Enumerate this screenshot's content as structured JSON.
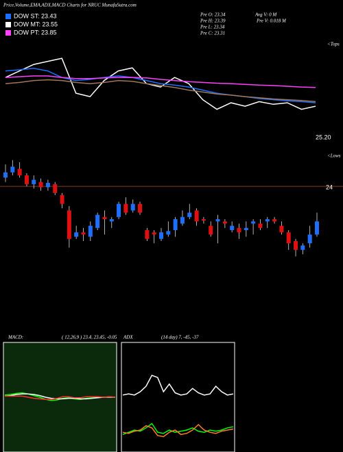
{
  "header": {
    "title": "Price,Volume,EMA,ADX,MACD Charts for NRUC MunafaSutra.com",
    "legend": [
      {
        "label": "DOW ST: 23.43",
        "color": "#1e6fff"
      },
      {
        "label": "DOW MT: 23.55",
        "color": "#ffffff"
      },
      {
        "label": "DOW PT: 23.85",
        "color": "#ff40ff"
      }
    ],
    "prev": [
      "Pre  O: 23.34",
      "Pre  H: 23.39",
      "Pre  L: 23.34",
      "Pre  C: 23.31"
    ],
    "volume": [
      "Avg V: 0  M",
      "Pre  V: 0.018 M"
    ]
  },
  "ema_panel": {
    "marker": "<Tops",
    "last_label": "25.20",
    "ylim": [
      24.3,
      26.8
    ],
    "series": [
      {
        "color": "#ffffff",
        "values": [
          26.03,
          26.2,
          26.37,
          26.45,
          26.53,
          25.62,
          25.53,
          25.95,
          26.2,
          26.28,
          25.87,
          25.78,
          26.03,
          25.87,
          25.45,
          25.2,
          25.37,
          25.28,
          25.4,
          25.33,
          25.37,
          25.2,
          25.28
        ]
      },
      {
        "color": "#1e6fff",
        "values": [
          26.2,
          26.23,
          26.27,
          26.2,
          26.03,
          25.95,
          25.98,
          26.03,
          26.07,
          26.03,
          25.95,
          25.87,
          25.83,
          25.78,
          25.7,
          25.62,
          25.57,
          25.53,
          25.48,
          25.45,
          25.42,
          25.4,
          25.37
        ]
      },
      {
        "color": "#ff40ff",
        "values": [
          26.03,
          26.05,
          26.07,
          26.07,
          26.03,
          26.0,
          26.0,
          26.02,
          26.03,
          26.03,
          26.02,
          25.98,
          25.95,
          25.92,
          25.9,
          25.88,
          25.87,
          25.85,
          25.83,
          25.82,
          25.8,
          25.78,
          25.77
        ]
      },
      {
        "color": "#a0785a",
        "values": [
          25.87,
          25.9,
          25.95,
          25.97,
          25.95,
          25.9,
          25.87,
          25.9,
          25.95,
          25.93,
          25.87,
          25.82,
          25.77,
          25.7,
          25.65,
          25.6,
          25.57,
          25.53,
          25.5,
          25.47,
          25.45,
          25.43,
          25.4
        ]
      }
    ]
  },
  "price_panel": {
    "marker": "<Lows",
    "level": 24,
    "ylim": [
      22,
      24.8
    ],
    "open": [
      24.2,
      24.32,
      24.4,
      24.25,
      24.05,
      24.1,
      23.98,
      24.05,
      23.8,
      23.45,
      22.85,
      22.95,
      22.85,
      23.05,
      23.3,
      23.2,
      23.3,
      23.6,
      23.45,
      23.6,
      23.0,
      22.95,
      22.8,
      22.9,
      23.0,
      23.15,
      23.3,
      23.45,
      23.25,
      23.1,
      23.2,
      23.2,
      23.0,
      23.05,
      23.0,
      23.15,
      23.15,
      23.2,
      23.25,
      23.1,
      22.95,
      22.75,
      22.55,
      22.7,
      22.9
    ],
    "high": [
      24.5,
      24.6,
      24.55,
      24.3,
      24.25,
      24.18,
      24.15,
      24.1,
      23.85,
      23.55,
      23.1,
      23.05,
      23.2,
      23.4,
      23.45,
      23.3,
      23.65,
      23.75,
      23.7,
      23.65,
      23.05,
      23.0,
      23.05,
      23.2,
      23.3,
      23.45,
      23.6,
      23.5,
      23.3,
      23.2,
      23.35,
      23.25,
      23.2,
      23.15,
      23.2,
      23.25,
      23.25,
      23.3,
      23.3,
      23.2,
      23.0,
      22.8,
      22.7,
      23.1,
      23.4
    ],
    "low": [
      24.1,
      24.25,
      24.2,
      24.0,
      23.95,
      23.9,
      23.9,
      23.8,
      23.5,
      22.6,
      22.8,
      22.75,
      22.75,
      23.0,
      22.9,
      23.05,
      23.25,
      23.35,
      23.4,
      23.35,
      22.75,
      22.7,
      22.75,
      22.85,
      22.85,
      23.1,
      23.25,
      23.1,
      23.15,
      22.85,
      22.7,
      23.05,
      22.95,
      22.8,
      22.85,
      22.9,
      23.0,
      23.05,
      23.15,
      22.9,
      22.55,
      22.4,
      22.45,
      22.6,
      22.85
    ],
    "close": [
      24.32,
      24.45,
      24.25,
      24.05,
      24.15,
      23.98,
      24.08,
      23.85,
      23.6,
      22.8,
      22.95,
      22.9,
      23.1,
      23.35,
      23.25,
      23.25,
      23.6,
      23.4,
      23.6,
      23.4,
      22.8,
      22.9,
      22.95,
      22.98,
      23.25,
      23.3,
      23.4,
      23.2,
      23.22,
      22.9,
      23.25,
      23.15,
      23.1,
      22.95,
      23.05,
      23.2,
      23.05,
      23.25,
      23.2,
      22.95,
      22.7,
      22.55,
      22.65,
      22.9,
      23.2
    ]
  },
  "macd_panel": {
    "label": "MACD:",
    "params": "( 12,26,9 ) 23.4, 23.45, -0.05",
    "ylim": [
      -1,
      1
    ],
    "series": [
      {
        "color": "#00ff00",
        "values": [
          0.04,
          0.05,
          0.07,
          0.08,
          0.06,
          0.03,
          0.0,
          -0.04,
          -0.06,
          -0.05,
          -0.02,
          -0.01,
          -0.03,
          -0.04,
          -0.02,
          -0.01,
          0.0,
          0.0,
          0.01,
          0.0
        ]
      },
      {
        "color": "#ffffff",
        "values": [
          0.02,
          0.03,
          0.05,
          0.06,
          0.06,
          0.05,
          0.03,
          0.0,
          -0.02,
          -0.03,
          -0.03,
          -0.02,
          -0.02,
          -0.03,
          -0.03,
          -0.02,
          -0.01,
          0.0,
          0.0,
          0.0
        ]
      },
      {
        "color": "#ff3030",
        "values": [
          0.02,
          0.02,
          0.02,
          0.02,
          0.0,
          -0.02,
          -0.03,
          -0.04,
          -0.04,
          -0.02,
          0.01,
          0.01,
          -0.01,
          -0.01,
          0.01,
          0.01,
          0.01,
          0.0,
          0.01,
          0.0
        ]
      }
    ]
  },
  "adx_panel": {
    "label": "ADX",
    "params": "(14 day) 7, -45, -37",
    "ylim": [
      0,
      100
    ],
    "series": [
      {
        "color": "#ffffff",
        "values": [
          52,
          53,
          52,
          55,
          60,
          70,
          68,
          55,
          62,
          54,
          52,
          53,
          58,
          54,
          52,
          53,
          60,
          55,
          52,
          53
        ]
      },
      {
        "color": "#00ff00",
        "values": [
          16,
          18,
          20,
          19,
          22,
          26,
          18,
          17,
          20,
          18,
          19,
          20,
          22,
          19,
          18,
          20,
          19,
          20,
          22,
          23
        ]
      },
      {
        "color": "#ff7f27",
        "values": [
          18,
          17,
          19,
          20,
          24,
          22,
          15,
          14,
          18,
          20,
          16,
          17,
          20,
          25,
          20,
          18,
          17,
          19,
          20,
          21
        ]
      }
    ]
  }
}
